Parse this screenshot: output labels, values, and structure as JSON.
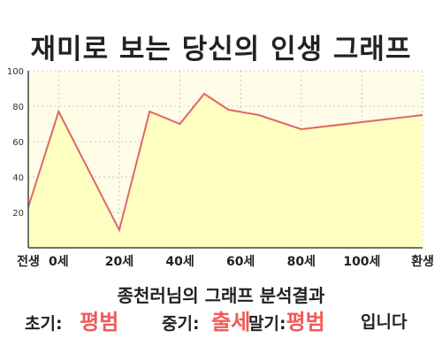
{
  "title": "재미로 보는 당신의 인생 그래프",
  "subtitle": "종천러님의 그래프 분석결과",
  "result": {
    "early_label": "초기:",
    "early_value": "평범",
    "mid_label": "중기:",
    "mid_value": "출세",
    "late_label": "말기:",
    "late_value": "평범",
    "ending": "입니다"
  },
  "colors": {
    "plot_bg": "#fffde8",
    "area_fill": "#ffffc2",
    "line": "#e06666",
    "grid": "#c8c8c8",
    "highlight": "#f05a5a"
  },
  "chart_data": {
    "type": "area",
    "title": "",
    "xlabel": "",
    "ylabel": "",
    "ylim": [
      0,
      100
    ],
    "xlim": [
      -10,
      120
    ],
    "yticks": [
      20,
      40,
      60,
      80,
      100
    ],
    "xticks": [
      {
        "x": -10,
        "label": "전생"
      },
      {
        "x": 0,
        "label": "0세"
      },
      {
        "x": 20,
        "label": "20세"
      },
      {
        "x": 40,
        "label": "40세"
      },
      {
        "x": 60,
        "label": "60세"
      },
      {
        "x": 80,
        "label": "80세"
      },
      {
        "x": 100,
        "label": "100세"
      },
      {
        "x": 120,
        "label": "환생"
      }
    ],
    "grid": true,
    "series": [
      {
        "x": [
          -10,
          0,
          20,
          30,
          40,
          48,
          56,
          66,
          80,
          100,
          120
        ],
        "values": [
          23,
          77,
          10,
          77,
          70,
          87,
          78,
          75,
          67,
          71,
          75
        ]
      }
    ]
  }
}
